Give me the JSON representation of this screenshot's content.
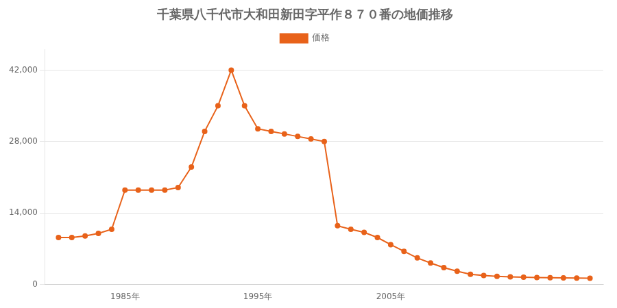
{
  "chart_data": {
    "type": "line",
    "title": "千葉県八千代市大和田新田字平作８７０番の地価推移",
    "x": [
      1980,
      1981,
      1982,
      1983,
      1984,
      1985,
      1986,
      1987,
      1988,
      1989,
      1990,
      1991,
      1992,
      1993,
      1994,
      1995,
      1996,
      1997,
      1998,
      1999,
      2000,
      2001,
      2002,
      2003,
      2004,
      2005,
      2006,
      2007,
      2008,
      2009,
      2010,
      2011,
      2012,
      2013,
      2014,
      2015,
      2016,
      2017,
      2018,
      2019,
      2020
    ],
    "series": [
      {
        "name": "価格",
        "color": "#e8621a",
        "marker": "circle",
        "line_style": "solid",
        "values": [
          9200,
          9200,
          9500,
          10000,
          10800,
          18500,
          18500,
          18500,
          18500,
          19000,
          23000,
          30000,
          35000,
          42000,
          35000,
          30500,
          30000,
          29500,
          29000,
          28500,
          28000,
          11500,
          10800,
          10200,
          9200,
          7800,
          6500,
          5200,
          4200,
          3300,
          2600,
          2000,
          1750,
          1600,
          1500,
          1430,
          1370,
          1320,
          1280,
          1250,
          1220
        ]
      }
    ],
    "xlim": [
      1979,
      2021
    ],
    "xticks": [
      {
        "value": 1985,
        "label": "1985年"
      },
      {
        "value": 1995,
        "label": "1995年"
      },
      {
        "value": 2005,
        "label": "2005年"
      }
    ],
    "ylim": [
      0,
      46000
    ],
    "yticks": [
      0,
      {
        "value": 14000,
        "label": "14,000"
      },
      {
        "value": 28000,
        "label": "28,000"
      },
      {
        "value": 42000,
        "label": "42,000"
      }
    ],
    "grid": "y",
    "legend": "top"
  }
}
